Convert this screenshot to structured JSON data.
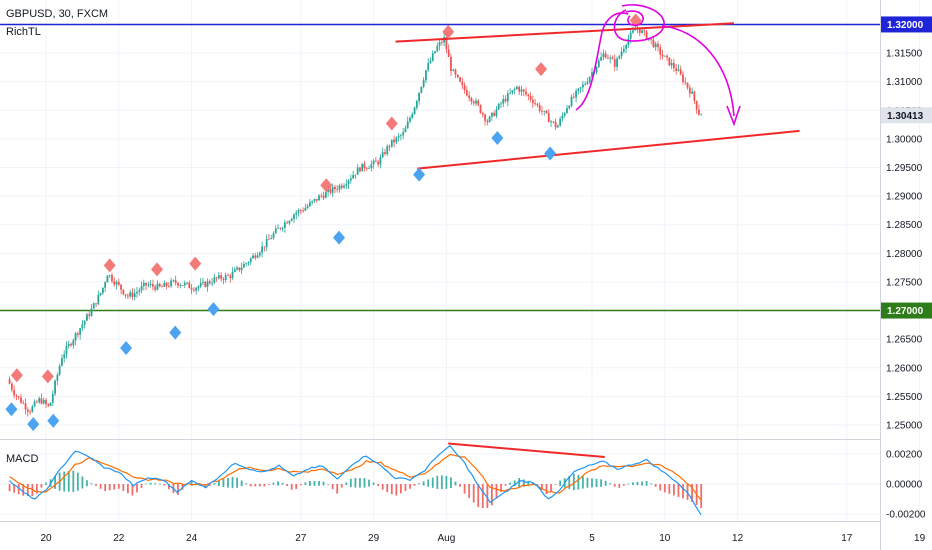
{
  "header": {
    "symbol_line": "GBPUSD, 30, FXCM",
    "indicator_name": "RichTL"
  },
  "colors": {
    "up": "#26a69a",
    "down": "#ef5350",
    "resistance": "#1f24d6",
    "support": "#2e7d1a",
    "channel": "#f0282a",
    "drawing": "#e000e0",
    "macd": "#2196f3",
    "signal": "#ff6d00",
    "pivot_high": "#f47a7a",
    "pivot_low": "#4ca3f0",
    "current_badge": "#e0e3eb"
  },
  "chart_data": [
    {
      "type": "line",
      "title": "GBPUSD, 30, FXCM",
      "ylim": [
        1.245,
        1.3225
      ],
      "y_ticks": [
        "1.32000",
        "1.31500",
        "1.31000",
        "1.30500",
        "1.30000",
        "1.29500",
        "1.29000",
        "1.28500",
        "1.28000",
        "1.27500",
        "1.27000",
        "1.26500",
        "1.26000",
        "1.25500",
        "1.25000"
      ],
      "x_ticks": [
        "20",
        "22",
        "24",
        "27",
        "29",
        "Aug",
        "5",
        "10",
        "12",
        "17",
        "19"
      ],
      "x_tick_days": [
        0,
        2,
        4,
        7,
        9,
        11,
        15,
        17,
        19,
        22,
        24
      ],
      "current_price": "1.30413",
      "price_path_points": [
        [
          -1.0,
          1.258
        ],
        [
          -0.8,
          1.2555
        ],
        [
          -0.4,
          1.2525
        ],
        [
          -0.1,
          1.2545
        ],
        [
          0.15,
          1.253
        ],
        [
          0.5,
          1.262
        ],
        [
          0.9,
          1.266
        ],
        [
          1.3,
          1.27
        ],
        [
          1.6,
          1.2735
        ],
        [
          1.75,
          1.2765
        ],
        [
          2.1,
          1.274
        ],
        [
          2.3,
          1.2725
        ],
        [
          2.5,
          1.273
        ],
        [
          2.8,
          1.2745
        ],
        [
          3.2,
          1.274
        ],
        [
          3.6,
          1.275
        ],
        [
          3.9,
          1.2745
        ],
        [
          4.1,
          1.274
        ],
        [
          4.4,
          1.2745
        ],
        [
          4.7,
          1.2755
        ],
        [
          5.1,
          1.276
        ],
        [
          5.6,
          1.2785
        ],
        [
          6.0,
          1.281
        ],
        [
          6.4,
          1.284
        ],
        [
          6.9,
          1.287
        ],
        [
          7.2,
          1.288
        ],
        [
          7.6,
          1.29
        ],
        [
          8.2,
          1.292
        ],
        [
          8.7,
          1.295
        ],
        [
          9.0,
          1.2955
        ],
        [
          9.2,
          1.296
        ],
        [
          9.5,
          1.299
        ],
        [
          9.9,
          1.301
        ],
        [
          10.2,
          1.306
        ],
        [
          10.5,
          1.312
        ],
        [
          10.8,
          1.316
        ],
        [
          11.0,
          1.3175
        ],
        [
          11.2,
          1.312
        ],
        [
          11.5,
          1.309
        ],
        [
          11.9,
          1.306
        ],
        [
          12.2,
          1.303
        ],
        [
          12.6,
          1.3065
        ],
        [
          13.0,
          1.309
        ],
        [
          13.4,
          1.307
        ],
        [
          13.8,
          1.304
        ],
        [
          14.1,
          1.302
        ],
        [
          14.4,
          1.306
        ],
        [
          14.9,
          1.31
        ],
        [
          15.4,
          1.315
        ],
        [
          15.7,
          1.313
        ],
        [
          16.0,
          1.317
        ],
        [
          16.3,
          1.3195
        ],
        [
          16.7,
          1.317
        ],
        [
          17.0,
          1.3145
        ],
        [
          17.4,
          1.312
        ],
        [
          17.8,
          1.308
        ],
        [
          18.0,
          1.3045
        ]
      ],
      "pivot_highs": [
        {
          "x": -0.8,
          "y": 1.258
        },
        {
          "x": 0.05,
          "y": 1.2578
        },
        {
          "x": 1.75,
          "y": 1.2772
        },
        {
          "x": 3.05,
          "y": 1.2765
        },
        {
          "x": 4.1,
          "y": 1.2775
        },
        {
          "x": 7.7,
          "y": 1.2912
        },
        {
          "x": 9.5,
          "y": 1.302
        },
        {
          "x": 11.05,
          "y": 1.318
        },
        {
          "x": 13.6,
          "y": 1.3115
        },
        {
          "x": 16.2,
          "y": 1.32
        }
      ],
      "pivot_lows": [
        {
          "x": -0.95,
          "y": 1.2538
        },
        {
          "x": -0.35,
          "y": 1.2512
        },
        {
          "x": 0.2,
          "y": 1.2518
        },
        {
          "x": 2.2,
          "y": 1.2645
        },
        {
          "x": 3.55,
          "y": 1.2672
        },
        {
          "x": 4.6,
          "y": 1.2713
        },
        {
          "x": 8.05,
          "y": 1.2838
        },
        {
          "x": 10.25,
          "y": 1.2948
        },
        {
          "x": 12.4,
          "y": 1.3012
        },
        {
          "x": 13.85,
          "y": 1.2985
        }
      ],
      "horizontal_levels": [
        {
          "name": "resistance",
          "y": 1.32,
          "label": "1.32000"
        },
        {
          "name": "support",
          "y": 1.27,
          "label": "1.27000"
        }
      ],
      "channel_upper": [
        [
          9.6,
          1.317
        ],
        [
          18.9,
          1.3202
        ]
      ],
      "channel_lower": [
        [
          10.2,
          1.2948
        ],
        [
          20.7,
          1.3014
        ]
      ]
    },
    {
      "type": "line",
      "title": "MACD",
      "ylim": [
        -0.0026,
        0.0031
      ],
      "y_ticks": [
        "0.00200",
        "0.00000",
        "-0.00200"
      ],
      "zero_line": 0.0,
      "macd_points": [
        [
          -1.0,
          0.0002
        ],
        [
          -0.6,
          -0.0006
        ],
        [
          -0.3,
          -0.001
        ],
        [
          0.0,
          -0.0004
        ],
        [
          0.4,
          0.001
        ],
        [
          0.8,
          0.0022
        ],
        [
          1.2,
          0.0018
        ],
        [
          1.6,
          0.0011
        ],
        [
          2.0,
          0.0008
        ],
        [
          2.4,
          -0.0001
        ],
        [
          2.8,
          0.0004
        ],
        [
          3.2,
          0.0003
        ],
        [
          3.6,
          -0.0005
        ],
        [
          4.0,
          0.0002
        ],
        [
          4.4,
          -0.0002
        ],
        [
          4.8,
          0.0006
        ],
        [
          5.2,
          0.0014
        ],
        [
          5.6,
          0.001
        ],
        [
          6.0,
          0.0008
        ],
        [
          6.4,
          0.0012
        ],
        [
          6.8,
          0.0005
        ],
        [
          7.2,
          0.001
        ],
        [
          7.6,
          0.0012
        ],
        [
          8.0,
          0.0003
        ],
        [
          8.4,
          0.0013
        ],
        [
          8.8,
          0.0019
        ],
        [
          9.2,
          0.0012
        ],
        [
          9.6,
          0.0004
        ],
        [
          10.0,
          0.0003
        ],
        [
          10.4,
          0.0009
        ],
        [
          10.8,
          0.002
        ],
        [
          11.1,
          0.0025
        ],
        [
          11.5,
          0.0014
        ],
        [
          11.9,
          -0.0002
        ],
        [
          12.2,
          -0.0012
        ],
        [
          12.6,
          -0.0006
        ],
        [
          13.0,
          0.0002
        ],
        [
          13.4,
          0.0001
        ],
        [
          13.8,
          -0.001
        ],
        [
          14.1,
          -0.0004
        ],
        [
          14.5,
          0.0008
        ],
        [
          14.9,
          0.0012
        ],
        [
          15.3,
          0.0015
        ],
        [
          15.7,
          0.001
        ],
        [
          16.1,
          0.0013
        ],
        [
          16.5,
          0.0016
        ],
        [
          16.9,
          0.0009
        ],
        [
          17.3,
          0.0002
        ],
        [
          17.7,
          -0.0008
        ],
        [
          18.0,
          -0.0021
        ]
      ],
      "signal_points": [
        [
          -1.0,
          0.0005
        ],
        [
          -0.6,
          -0.0001
        ],
        [
          -0.3,
          -0.0005
        ],
        [
          0.0,
          -0.0005
        ],
        [
          0.4,
          0.0002
        ],
        [
          0.8,
          0.0013
        ],
        [
          1.2,
          0.0017
        ],
        [
          1.6,
          0.0014
        ],
        [
          2.0,
          0.001
        ],
        [
          2.4,
          0.0004
        ],
        [
          2.8,
          0.0003
        ],
        [
          3.2,
          0.0003
        ],
        [
          3.6,
          0.0
        ],
        [
          4.0,
          0.0
        ],
        [
          4.4,
          0.0
        ],
        [
          4.8,
          0.0003
        ],
        [
          5.2,
          0.0009
        ],
        [
          5.6,
          0.0011
        ],
        [
          6.0,
          0.0009
        ],
        [
          6.4,
          0.001
        ],
        [
          6.8,
          0.0008
        ],
        [
          7.2,
          0.0008
        ],
        [
          7.6,
          0.001
        ],
        [
          8.0,
          0.0007
        ],
        [
          8.4,
          0.0009
        ],
        [
          8.8,
          0.0015
        ],
        [
          9.2,
          0.0014
        ],
        [
          9.6,
          0.0009
        ],
        [
          10.0,
          0.0005
        ],
        [
          10.4,
          0.0007
        ],
        [
          10.8,
          0.0014
        ],
        [
          11.1,
          0.002
        ],
        [
          11.5,
          0.0018
        ],
        [
          11.9,
          0.0008
        ],
        [
          12.2,
          -0.0002
        ],
        [
          12.6,
          -0.0005
        ],
        [
          13.0,
          -0.0002
        ],
        [
          13.4,
          0.0
        ],
        [
          13.8,
          -0.0005
        ],
        [
          14.1,
          -0.0006
        ],
        [
          14.5,
          0.0001
        ],
        [
          14.9,
          0.0008
        ],
        [
          15.3,
          0.0012
        ],
        [
          15.7,
          0.0012
        ],
        [
          16.1,
          0.0012
        ],
        [
          16.5,
          0.0014
        ],
        [
          16.9,
          0.0012
        ],
        [
          17.3,
          0.0007
        ],
        [
          17.7,
          -0.0001
        ],
        [
          18.0,
          -0.0011
        ]
      ],
      "divergence_line": [
        [
          11.05,
          0.0027
        ],
        [
          15.35,
          0.0018
        ]
      ]
    }
  ]
}
